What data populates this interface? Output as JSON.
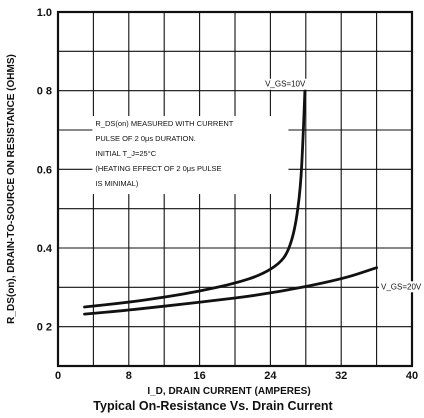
{
  "chart_data": {
    "type": "line",
    "title": "Typical On-Resistance Vs. Drain Current",
    "xlabel": "I_D, DRAIN CURRENT (AMPERES)",
    "ylabel": "R_DS(on), DRAIN-TO-SOURCE ON RESISTANCE (OHMS)",
    "xlim": [
      0,
      40
    ],
    "ylim": [
      0.1,
      1.0
    ],
    "x_ticks": [
      0,
      8,
      16,
      24,
      32,
      40
    ],
    "x_tick_labels": [
      "0",
      "8",
      "16",
      "24",
      "32",
      "40"
    ],
    "y_ticks": [
      0.2,
      0.4,
      0.6,
      0.8,
      1.0
    ],
    "y_tick_labels": [
      "0 2",
      "0.4",
      "0.6",
      "0 8",
      "1.0"
    ],
    "grid": true,
    "series": [
      {
        "name": "V_GS=10V",
        "x": [
          3,
          8,
          12,
          16,
          20,
          23,
          25,
          26,
          26.8,
          27.4,
          27.7,
          27.9
        ],
        "y": [
          0.25,
          0.262,
          0.275,
          0.29,
          0.31,
          0.332,
          0.36,
          0.39,
          0.45,
          0.55,
          0.68,
          0.8
        ]
      },
      {
        "name": "V_GS=20V",
        "x": [
          3,
          8,
          16,
          24,
          32,
          36
        ],
        "y": [
          0.232,
          0.242,
          0.262,
          0.284,
          0.32,
          0.35
        ]
      }
    ],
    "annotation_lines": [
      "R_DS(on) MEASURED WITH CURRENT",
      "PULSE OF  2 0μs DURATION.",
      "INITIAL T_J=25°C",
      "(HEATING  EFFECT OF 2 0μs PULSE",
      "  IS MINIMAL)"
    ],
    "series_labels": [
      "V_GS=10V",
      "V_GS=20V"
    ]
  }
}
